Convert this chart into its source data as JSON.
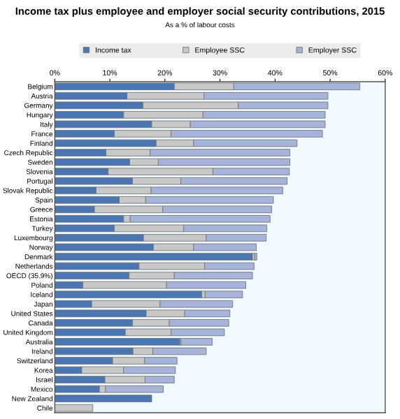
{
  "chart_data": {
    "type": "bar",
    "title": "Income tax plus employee and employer social security contributions, 2015",
    "subtitle": "As a % of labour costs",
    "orientation": "horizontal",
    "stacked": true,
    "legend": "top",
    "grid": false,
    "categories": [
      "Belgium",
      "Austria",
      "Germany",
      "Hungary",
      "Italy",
      "France",
      "Finland",
      "Czech Republic",
      "Sweden",
      "Slovenia",
      "Portugal",
      "Slovak Republic",
      "Spain",
      "Greece",
      "Estonia",
      "Turkey",
      "Luxembourg",
      "Norway",
      "Denmark",
      "Netherlands",
      "OECD (35.9%)",
      "Poland",
      "Iceland",
      "Japan",
      "United States",
      "Canada",
      "United Kingdom",
      "Australia",
      "Ireland",
      "Switzerland",
      "Korea",
      "Israel",
      "Mexico",
      "New Zealand",
      "Chile"
    ],
    "xlim": [
      0,
      60
    ],
    "xticks": [
      {
        "value": 0,
        "label": "0%"
      },
      {
        "value": 10,
        "label": "10%"
      },
      {
        "value": 20,
        "label": "20%"
      },
      {
        "value": 30,
        "label": "30%"
      },
      {
        "value": 40,
        "label": "40%"
      },
      {
        "value": 50,
        "label": "50%"
      },
      {
        "value": 60,
        "label": "60%"
      }
    ],
    "series": [
      {
        "name": "Income tax",
        "color": "#4a76b4",
        "values": [
          21.7,
          13.1,
          16.0,
          12.5,
          17.6,
          10.8,
          18.4,
          9.3,
          13.6,
          9.7,
          14.1,
          7.5,
          11.7,
          7.2,
          12.5,
          10.8,
          16.1,
          17.9,
          35.9,
          15.3,
          13.5,
          5.1,
          26.7,
          6.7,
          16.6,
          14.1,
          12.8,
          22.7,
          14.2,
          10.5,
          4.9,
          9.1,
          8.1,
          17.6,
          null
        ]
      },
      {
        "name": "Employee SSC",
        "color": "#c8c8c8",
        "values": [
          10.8,
          14.0,
          17.3,
          14.4,
          7.0,
          10.3,
          6.8,
          8.0,
          5.2,
          19.0,
          8.8,
          10.0,
          4.8,
          12.4,
          1.2,
          12.6,
          11.4,
          7.3,
          0.4,
          11.9,
          8.2,
          15.2,
          0.6,
          12.4,
          7.0,
          6.7,
          8.3,
          0.2,
          3.6,
          5.8,
          7.6,
          7.3,
          1.1,
          null,
          6.9
        ]
      },
      {
        "name": "Employer SSC",
        "color": "#a6b4dc",
        "values": [
          22.9,
          22.5,
          16.3,
          22.2,
          24.5,
          27.5,
          18.8,
          25.4,
          23.9,
          13.9,
          19.3,
          23.9,
          23.2,
          19.8,
          25.4,
          15.1,
          10.9,
          11.4,
          0.4,
          9.0,
          14.2,
          14.4,
          6.8,
          13.2,
          8.2,
          10.8,
          9.7,
          5.7,
          9.7,
          5.9,
          9.4,
          5.3,
          10.5,
          null,
          null
        ]
      }
    ]
  }
}
